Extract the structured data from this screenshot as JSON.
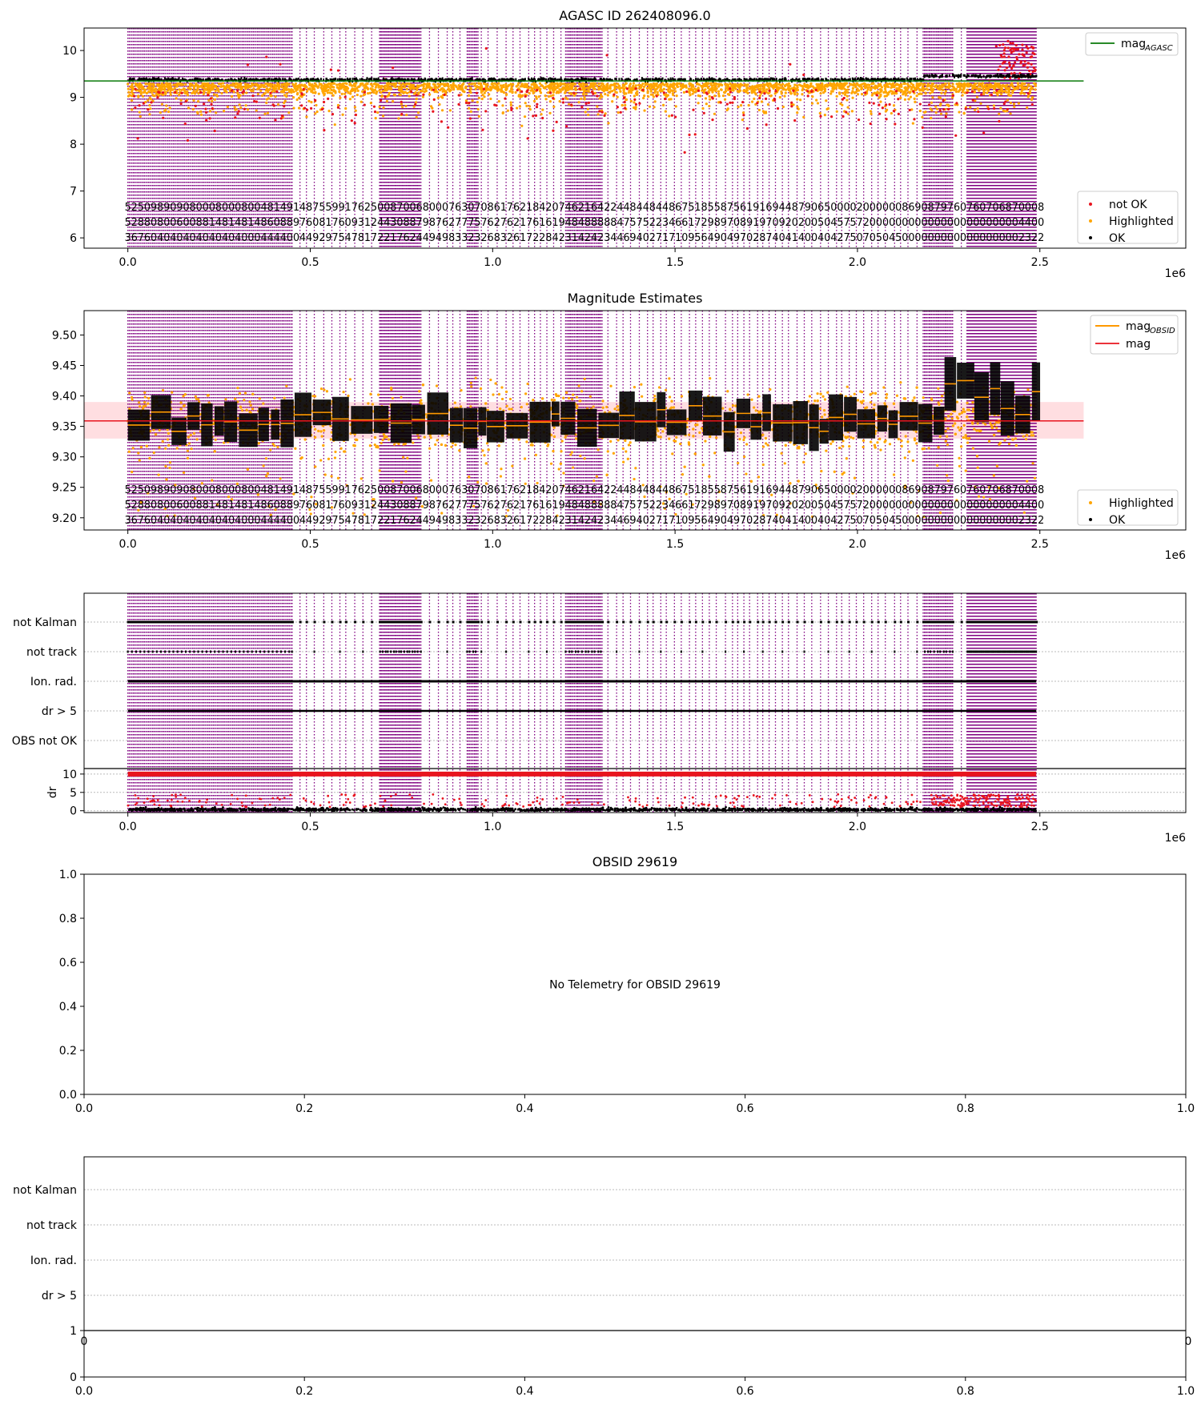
{
  "colors": {
    "ok": "#000000",
    "highlighted": "#ffa500",
    "not_ok": "#e8141e",
    "obs_lines": "#800080",
    "mag_agasc": "#0a7a0a",
    "mag": "#e8141e",
    "mag_obsid": "#ff9900",
    "band": "#ffd6d9"
  },
  "chart_data": [
    {
      "id": "agasc",
      "type": "scatter",
      "title": "AGASC ID 262408096.0",
      "xlim": [
        -120000,
        2900000
      ],
      "ylim": [
        5.78,
        10.48
      ],
      "x_ticks": [
        "0.0",
        "0.5",
        "1.0",
        "1.5",
        "2.0",
        "2.5"
      ],
      "x_tick_values": [
        0,
        500000,
        1000000,
        1500000,
        2000000,
        2500000
      ],
      "x_offset_label": "1e6",
      "y_ticks": [
        "6",
        "7",
        "8",
        "9",
        "10"
      ],
      "y_tick_values": [
        6,
        7,
        8,
        9,
        10
      ],
      "legend": {
        "placement": "upper right",
        "entries": [
          "mag",
          "not OK",
          "Highlighted",
          "OK"
        ],
        "mag_sub": "AGASC"
      },
      "series": [
        {
          "name": "mag",
          "kind": "hline",
          "y": 9.35,
          "x_range": [
            -120000,
            2620000
          ]
        },
        {
          "name": "OK",
          "kind": "band",
          "center": 9.36,
          "spread": 0.05
        },
        {
          "name": "Highlighted",
          "kind": "scatter",
          "center": 9.3,
          "spread": 0.5
        },
        {
          "name": "not OK",
          "kind": "scatter",
          "center": 9.0,
          "spread": 1.4
        }
      ],
      "obsid_label_rows": [
        "5250989090800080008004814914875599176250087006800076307086176218420746216422448448448675185587561916944879065000020000008690879760760706870008",
        "5288080060088148148148608897608176093124430887987627775762762176161948488888475752234661729897089197092020050457572000000000000000000000004400",
        "3676040404040404040004444004492975478172217624494983323268326172284231424234469402717109564904970287404140040427507050450000000000000000002322"
      ]
    },
    {
      "id": "mag",
      "type": "scatter",
      "title": "Magnitude Estimates",
      "xlim": [
        -120000,
        2900000
      ],
      "ylim": [
        9.18,
        9.54
      ],
      "x_ticks": [
        "0.0",
        "0.5",
        "1.0",
        "1.5",
        "2.0",
        "2.5"
      ],
      "x_tick_values": [
        0,
        500000,
        1000000,
        1500000,
        2000000,
        2500000
      ],
      "x_offset_label": "1e6",
      "y_ticks": [
        "9.20",
        "9.25",
        "9.30",
        "9.35",
        "9.40",
        "9.45",
        "9.50"
      ],
      "y_tick_values": [
        9.2,
        9.25,
        9.3,
        9.35,
        9.4,
        9.45,
        9.5
      ],
      "legend_top": {
        "placement": "upper right",
        "entries": [
          "mag",
          "mag"
        ],
        "mag_sub": "OBSID"
      },
      "legend_bottom": {
        "placement": "lower right",
        "entries": [
          "Highlighted",
          "OK"
        ]
      },
      "band": [
        9.33,
        9.39
      ],
      "series": [
        {
          "name": "mag",
          "kind": "hline",
          "y": 9.359,
          "x_range": [
            -120000,
            2620000
          ]
        },
        {
          "name": "OK",
          "kind": "segments",
          "center": 9.36
        },
        {
          "name": "Highlighted",
          "kind": "scatter",
          "center": 9.36
        }
      ],
      "obsid_label_rows": [
        "5250989090800080008004814914875599176250087006800076307086176218420746216422448448448675185587561916944879065000020000008690879760760706870008",
        "5288080060088148148148608897608176093124430887987627775762762176161948488888475752234661729897089197092020050457572000000000000000000000004400",
        "3676040404040404040004444004492975478172217624494983323268326172284231424234469402717109564904970287404140040427507050450000000000000000002322"
      ]
    },
    {
      "id": "flags",
      "type": "scatter",
      "xlim": [
        -120000,
        2900000
      ],
      "x_ticks": [
        "0.0",
        "0.5",
        "1.0",
        "1.5",
        "2.0",
        "2.5"
      ],
      "x_tick_values": [
        0,
        500000,
        1000000,
        1500000,
        2000000,
        2500000
      ],
      "x_offset_label": "1e6",
      "flag_labels": [
        "not Kalman",
        "not track",
        "Ion. rad.",
        "dr > 5",
        "OBS not OK"
      ],
      "dr_ticks": [
        "0",
        "5",
        "10"
      ],
      "dr_tick_values": [
        0,
        5,
        10
      ],
      "dr_ylabel": "dr",
      "dr_ylim": [
        -0.5,
        11.5
      ]
    },
    {
      "id": "obsid",
      "type": "scatter",
      "title": "OBSID 29619",
      "annotation": "No Telemetry for OBSID 29619",
      "xlim": [
        0,
        1
      ],
      "ylim": [
        0,
        1
      ],
      "x_ticks": [
        "0.0",
        "0.2",
        "0.4",
        "0.6",
        "0.8",
        "1.0"
      ],
      "x_tick_values": [
        0,
        0.2,
        0.4,
        0.6,
        0.8,
        1.0
      ],
      "y_ticks": [
        "0.0",
        "0.2",
        "0.4",
        "0.6",
        "0.8",
        "1.0"
      ],
      "y_tick_values": [
        0,
        0.2,
        0.4,
        0.6,
        0.8,
        1.0
      ]
    },
    {
      "id": "obsid_flags",
      "type": "scatter",
      "flag_labels": [
        "not Kalman",
        "not track",
        "Ion. rad.",
        "dr > 5"
      ],
      "partial_tick_left": "0",
      "partial_tick_right": "0",
      "x_ticks": [
        "0.0",
        "0.2",
        "0.4",
        "0.6",
        "0.8",
        "1.0"
      ],
      "x_tick_values": [
        0,
        0.2,
        0.4,
        0.6,
        0.8,
        1.0
      ],
      "y_ticks": [
        "0",
        "1"
      ],
      "y_tick_values": [
        0,
        1
      ]
    }
  ]
}
